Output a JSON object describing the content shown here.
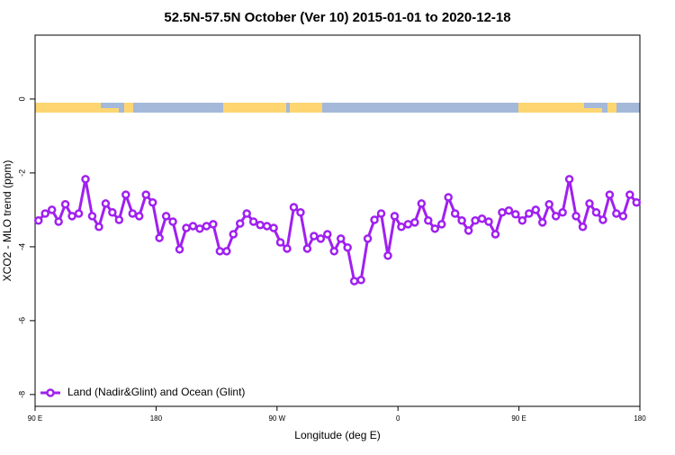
{
  "chart_data": {
    "type": "line",
    "title": "52.5N-57.5N October (Ver 10)   2015-01-01 to 2020-12-18",
    "xlabel": "Longitude (deg E)",
    "ylabel": "XCO2 - MLO trend (ppm)",
    "x": [
      92.5,
      97.5,
      102.5,
      107.5,
      112.5,
      117.5,
      122.5,
      127.5,
      132.5,
      137.5,
      142.5,
      147.5,
      152.5,
      157.5,
      162.5,
      167.5,
      172.5,
      177.5,
      182.5,
      187.5,
      192.5,
      197.5,
      202.5,
      207.5,
      212.5,
      217.5,
      222.5,
      227.5,
      232.5,
      237.5,
      242.5,
      247.5,
      252.5,
      257.5,
      262.5,
      267.5,
      272.5,
      277.5,
      282.5,
      287.5,
      292.5,
      297.5,
      302.5,
      307.5,
      312.5,
      317.5,
      322.5,
      327.5,
      332.5,
      337.5,
      342.5,
      347.5,
      352.5,
      357.5,
      362.5,
      367.5,
      372.5,
      377.5,
      382.5,
      387.5,
      392.5,
      397.5,
      402.5,
      407.5,
      412.5,
      417.5,
      422.5,
      427.5,
      432.5,
      437.5,
      442.5,
      447.5,
      452.5,
      457.5,
      462.5,
      467.5,
      472.5,
      477.5,
      482.5,
      487.5,
      492.5,
      497.5,
      502.5,
      507.5,
      512.5,
      517.5,
      522.5,
      527.5,
      532.5,
      537.5
    ],
    "series": [
      {
        "name": "Land (Nadir&Glint) and Ocean (Glint)",
        "color": "#a020f0",
        "values": [
          -3.29,
          -3.1,
          -3.0,
          -3.32,
          -2.85,
          -3.17,
          -3.1,
          -2.17,
          -3.17,
          -3.46,
          -2.83,
          -3.07,
          -3.27,
          -2.59,
          -3.1,
          -3.17,
          -2.59,
          -2.8,
          -3.76,
          -3.17,
          -3.32,
          -4.07,
          -3.49,
          -3.44,
          -3.51,
          -3.44,
          -3.39,
          -4.12,
          -4.12,
          -3.66,
          -3.37,
          -3.1,
          -3.32,
          -3.41,
          -3.44,
          -3.49,
          -3.88,
          -4.05,
          -2.93,
          -3.07,
          -4.05,
          -3.71,
          -3.78,
          -3.66,
          -4.12,
          -3.78,
          -4.02,
          -4.93,
          -4.9,
          -3.78,
          -3.27,
          -3.1,
          -4.24,
          -3.17,
          -3.46,
          -3.39,
          -3.34,
          -2.83,
          -3.29,
          -3.51,
          -3.39,
          -2.66,
          -3.1,
          -3.29,
          -3.56,
          -3.29,
          -3.24,
          -3.32,
          -3.66,
          -3.07,
          -3.02,
          -3.12,
          -3.29,
          -3.1,
          -3.0,
          -3.34,
          -2.85,
          -3.17,
          -3.07,
          -2.17,
          -3.17,
          -3.46,
          -2.83,
          -3.07,
          -3.27,
          -2.59,
          -3.1,
          -3.17,
          -2.59,
          -2.8
        ]
      }
    ],
    "xlim": [
      90,
      540
    ],
    "ylim": [
      -8.32,
      1.73
    ],
    "xticks": [
      {
        "value": 90,
        "label": "90 E"
      },
      180,
      {
        "value": 270,
        "label": "90 W"
      },
      {
        "value": 360,
        "label": "0"
      },
      {
        "value": 450,
        "label": "90 E"
      },
      {
        "value": 540,
        "label": "180"
      }
    ],
    "yticks": [
      0,
      -2,
      -4,
      -6,
      -8
    ],
    "legend": "lower left"
  }
}
